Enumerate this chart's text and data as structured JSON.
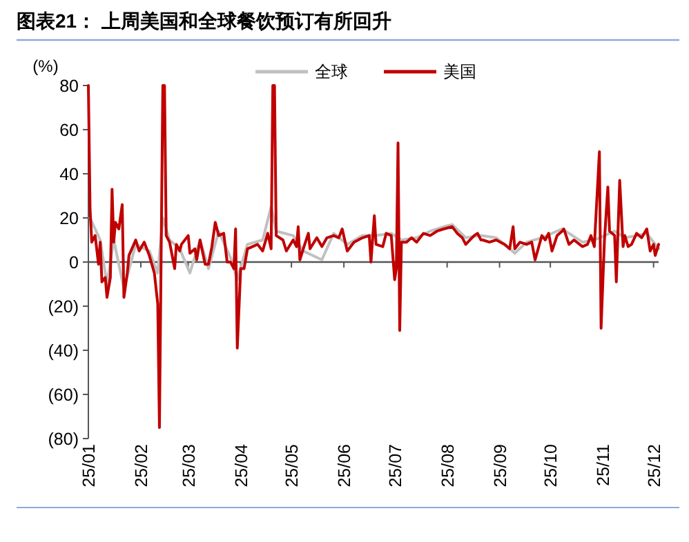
{
  "chart_data": {
    "type": "line",
    "title": "图表21： 上周美国和全球餐饮预订有所回升",
    "ylabel": "(%)",
    "legend": "top",
    "grid": false,
    "ref_lines": [
      {
        "axis": "y",
        "value": 0,
        "color": "#555555",
        "line_style": "solid"
      }
    ],
    "xlim": [
      "--01-01",
      "--12-04"
    ],
    "xticks": [
      {
        "value": "--01-01",
        "label": "25/01"
      },
      {
        "value": "--02-01",
        "label": "25/02"
      },
      {
        "value": "--03-01",
        "label": "25/03"
      },
      {
        "value": "--04-01",
        "label": "25/04"
      },
      {
        "value": "--05-01",
        "label": "25/05"
      },
      {
        "value": "--06-01",
        "label": "25/06"
      },
      {
        "value": "--07-01",
        "label": "25/07"
      },
      {
        "value": "--08-01",
        "label": "25/08"
      },
      {
        "value": "--09-01",
        "label": "25/09"
      },
      {
        "value": "--10-01",
        "label": "25/10"
      },
      {
        "value": "--11-01",
        "label": "25/11"
      },
      {
        "value": "--12-01",
        "label": "25/12"
      }
    ],
    "ylim": [
      -80,
      80
    ],
    "yticks": [
      {
        "value": -80,
        "label": "(80)"
      },
      {
        "value": -60,
        "label": "(60)"
      },
      {
        "value": -40,
        "label": "(40)"
      },
      {
        "value": -20,
        "label": "(20)"
      },
      0,
      20,
      40,
      60,
      80
    ],
    "series": [
      {
        "name": "全球",
        "color": "#c0c0c0",
        "x": [
          "--01-02",
          "--01-08",
          "--01-12",
          "--01-16",
          "--01-22",
          "--01-29",
          "--02-06",
          "--02-11",
          "--02-14",
          "--02-18",
          "--02-24",
          "--03-02",
          "--03-08",
          "--03-13",
          "--03-19",
          "--03-26",
          "--03-30",
          "--04-05",
          "--04-14",
          "--04-19",
          "--04-22",
          "--05-02",
          "--05-08",
          "--05-19",
          "--05-26",
          "--06-03",
          "--06-12",
          "--06-20",
          "--06-29",
          "--07-05",
          "--07-14",
          "--07-22",
          "--07-30",
          "--08-04",
          "--08-12",
          "--08-21",
          "--08-30",
          "--09-04",
          "--09-10",
          "--09-17",
          "--09-26",
          "--10-08",
          "--10-20",
          "--10-27",
          "--11-02",
          "--11-08",
          "--11-14",
          "--11-21",
          "--11-27",
          "--12-04"
        ],
        "values": [
          20,
          10,
          -10,
          10,
          -12,
          8,
          5,
          -5,
          20,
          10,
          6,
          -5,
          10,
          -3,
          14,
          2,
          -8,
          8,
          10,
          25,
          14,
          12,
          5,
          1,
          13,
          8,
          12,
          12,
          13,
          10,
          11,
          14,
          16,
          17,
          11,
          12,
          11,
          8,
          4,
          9,
          11,
          15,
          9,
          10,
          12,
          14,
          11,
          12,
          13,
          6
        ]
      },
      {
        "name": "美国",
        "color": "#c00000",
        "x": [
          "--01-01",
          "--01-02",
          "--01-03",
          "--01-05",
          "--01-07",
          "--01-08",
          "--01-09",
          "--01-11",
          "--01-12",
          "--01-14",
          "--01-15",
          "--01-16",
          "--01-17",
          "--01-19",
          "--01-21",
          "--01-22",
          "--01-24",
          "--01-25",
          "--01-29",
          "--01-31",
          "--02-03",
          "--02-06",
          "--02-09",
          "--02-11",
          "--02-12",
          "--02-14",
          "--02-15",
          "--02-16",
          "--02-18",
          "--02-21",
          "--02-22",
          "--02-24",
          "--02-25",
          "--03-01",
          "--03-02",
          "--03-05",
          "--03-06",
          "--03-08",
          "--03-11",
          "--03-13",
          "--03-15",
          "--03-17",
          "--03-19",
          "--03-22",
          "--03-24",
          "--03-26",
          "--03-28",
          "--03-29",
          "--03-30",
          "--04-01",
          "--04-03",
          "--04-05",
          "--04-08",
          "--04-11",
          "--04-14",
          "--04-17",
          "--04-19",
          "--04-20",
          "--04-21",
          "--04-22",
          "--04-26",
          "--04-28",
          "--05-02",
          "--05-04",
          "--05-05",
          "--05-06",
          "--05-08",
          "--05-11",
          "--05-12",
          "--05-16",
          "--05-19",
          "--05-22",
          "--05-26",
          "--05-29",
          "--05-31",
          "--06-03",
          "--06-07",
          "--06-12",
          "--06-16",
          "--06-17",
          "--06-19",
          "--06-20",
          "--06-24",
          "--06-26",
          "--06-29",
          "--07-01",
          "--07-02",
          "--07-03",
          "--07-04",
          "--07-05",
          "--07-08",
          "--07-11",
          "--07-14",
          "--07-18",
          "--07-22",
          "--07-26",
          "--07-30",
          "--08-04",
          "--08-07",
          "--08-10",
          "--08-12",
          "--08-17",
          "--08-19",
          "--08-21",
          "--08-22",
          "--08-26",
          "--08-30",
          "--09-04",
          "--09-07",
          "--09-09",
          "--09-10",
          "--09-13",
          "--09-17",
          "--09-20",
          "--09-22",
          "--09-26",
          "--09-28",
          "--09-30",
          "--10-02",
          "--10-05",
          "--10-08",
          "--10-09",
          "--10-12",
          "--10-15",
          "--10-20",
          "--10-23",
          "--10-25",
          "--10-27",
          "--10-30",
          "--10-31",
          "--11-02",
          "--11-04",
          "--11-05",
          "--11-08",
          "--11-09",
          "--11-11",
          "--11-13",
          "--11-14",
          "--11-16",
          "--11-18",
          "--11-21",
          "--11-24",
          "--11-27",
          "--11-29",
          "--12-01",
          "--12-02",
          "--12-04"
        ],
        "values": [
          80,
          24,
          9,
          12,
          -1,
          9,
          -9,
          -7,
          -16,
          -7,
          33,
          9,
          18,
          15,
          26,
          -16,
          -5,
          3,
          10,
          5,
          9,
          3,
          -5,
          -19,
          -75,
          80,
          80,
          12,
          9,
          -3,
          8,
          5,
          8,
          12,
          4,
          6,
          1,
          10,
          -1,
          -1,
          7,
          18,
          12,
          13,
          0,
          0,
          -3,
          15,
          -39,
          -3,
          -3,
          6,
          7,
          8,
          5,
          13,
          6,
          80,
          80,
          12,
          10,
          5,
          10,
          7,
          16,
          1,
          6,
          13,
          6,
          11,
          7,
          11,
          12,
          11,
          15,
          5,
          9,
          11,
          12,
          0,
          21,
          8,
          7,
          13,
          12,
          -8,
          -3,
          54,
          -31,
          9,
          9,
          11,
          9,
          13,
          12,
          14,
          15,
          16,
          13,
          11,
          8,
          12,
          13,
          10,
          10,
          9,
          10,
          8,
          6,
          16,
          6,
          9,
          8,
          9,
          1,
          12,
          10,
          13,
          5,
          12,
          14,
          15,
          8,
          10,
          7,
          8,
          12,
          7,
          50,
          -30,
          10,
          34,
          14,
          12,
          -9,
          37,
          7,
          12,
          7,
          8,
          13,
          11,
          15,
          5,
          8,
          3,
          8
        ]
      }
    ]
  }
}
